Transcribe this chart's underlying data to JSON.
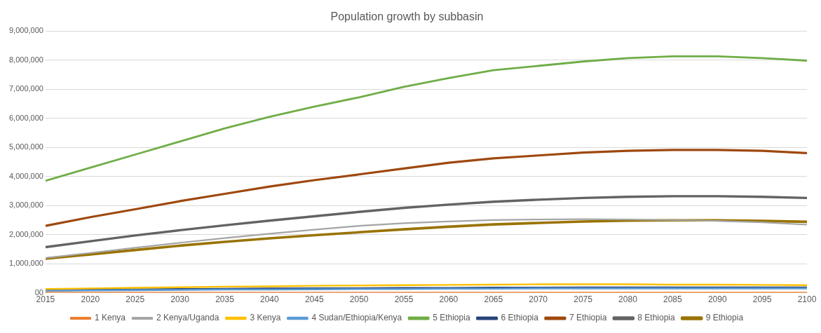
{
  "chart_data": {
    "type": "line",
    "title": "Population growth by subbasin",
    "x": [
      2015,
      2020,
      2025,
      2030,
      2035,
      2040,
      2045,
      2050,
      2055,
      2060,
      2065,
      2070,
      2075,
      2080,
      2085,
      2090,
      2095,
      2100
    ],
    "xlim": [
      2015,
      2100
    ],
    "xticks": [
      2015,
      2020,
      2025,
      2030,
      2035,
      2040,
      2045,
      2050,
      2055,
      2060,
      2065,
      2070,
      2075,
      2080,
      2085,
      2090,
      2095,
      2100
    ],
    "ylim": [
      0,
      9000000
    ],
    "yticks": [
      {
        "value": 0,
        "label": "00"
      },
      {
        "value": 1000000,
        "label": "1,000,000"
      },
      {
        "value": 2000000,
        "label": "2,000,000"
      },
      {
        "value": 3000000,
        "label": "3,000,000"
      },
      {
        "value": 4000000,
        "label": "4,000,000"
      },
      {
        "value": 5000000,
        "label": "5,000,000"
      },
      {
        "value": 6000000,
        "label": "6,000,000"
      },
      {
        "value": 7000000,
        "label": "7,000,000"
      },
      {
        "value": 8000000,
        "label": "8,000,000"
      },
      {
        "value": 9000000,
        "label": "9,000,000"
      }
    ],
    "grid": "y",
    "legend": "bottom",
    "marker": "none",
    "line_style": "solid",
    "series": [
      {
        "name": "1 Kenya",
        "color": "#ed7d31",
        "values": [
          10000,
          10000,
          10000,
          10000,
          10000,
          10000,
          10000,
          10000,
          10000,
          10000,
          10000,
          10000,
          10000,
          10000,
          10000,
          10000,
          10000,
          10000
        ]
      },
      {
        "name": "2 Kenya/Uganda",
        "color": "#a5a5a5",
        "values": [
          1200000,
          1370000,
          1550000,
          1720000,
          1880000,
          2030000,
          2170000,
          2300000,
          2390000,
          2450000,
          2500000,
          2520000,
          2530000,
          2520000,
          2500000,
          2470000,
          2420000,
          2340000
        ]
      },
      {
        "name": "3 Kenya",
        "color": "#ffc000",
        "values": [
          130000,
          150000,
          170000,
          190000,
          210000,
          220000,
          240000,
          250000,
          260000,
          270000,
          280000,
          290000,
          290000,
          290000,
          280000,
          280000,
          270000,
          260000
        ]
      },
      {
        "name": "4 Sudan/Ethiopia/Kenya",
        "color": "#5b9bd5",
        "values": [
          70000,
          80000,
          90000,
          100000,
          110000,
          110000,
          120000,
          130000,
          130000,
          140000,
          140000,
          150000,
          150000,
          150000,
          150000,
          150000,
          150000,
          150000
        ]
      },
      {
        "name": "5 Ethiopia",
        "color": "#70ad47",
        "values": [
          3850000,
          4300000,
          4750000,
          5200000,
          5650000,
          6050000,
          6400000,
          6720000,
          7080000,
          7380000,
          7650000,
          7800000,
          7950000,
          8070000,
          8130000,
          8130000,
          8070000,
          7980000
        ]
      },
      {
        "name": "6 Ethiopia",
        "color": "#264478",
        "values": [
          90000,
          100000,
          110000,
          120000,
          130000,
          140000,
          150000,
          150000,
          160000,
          160000,
          170000,
          170000,
          180000,
          180000,
          180000,
          180000,
          180000,
          180000
        ]
      },
      {
        "name": "7 Ethiopia",
        "color": "#9e480e",
        "values": [
          2300000,
          2600000,
          2870000,
          3150000,
          3400000,
          3650000,
          3870000,
          4070000,
          4270000,
          4470000,
          4620000,
          4720000,
          4820000,
          4880000,
          4910000,
          4910000,
          4880000,
          4800000
        ]
      },
      {
        "name": "8 Ethiopia",
        "color": "#636363",
        "values": [
          1570000,
          1770000,
          1970000,
          2150000,
          2320000,
          2480000,
          2630000,
          2780000,
          2920000,
          3030000,
          3130000,
          3200000,
          3260000,
          3300000,
          3320000,
          3320000,
          3300000,
          3260000
        ]
      },
      {
        "name": "9 Ethiopia",
        "color": "#997300",
        "values": [
          1170000,
          1320000,
          1470000,
          1620000,
          1750000,
          1870000,
          1980000,
          2080000,
          2180000,
          2270000,
          2350000,
          2400000,
          2450000,
          2480000,
          2490000,
          2490000,
          2470000,
          2440000
        ]
      }
    ]
  }
}
